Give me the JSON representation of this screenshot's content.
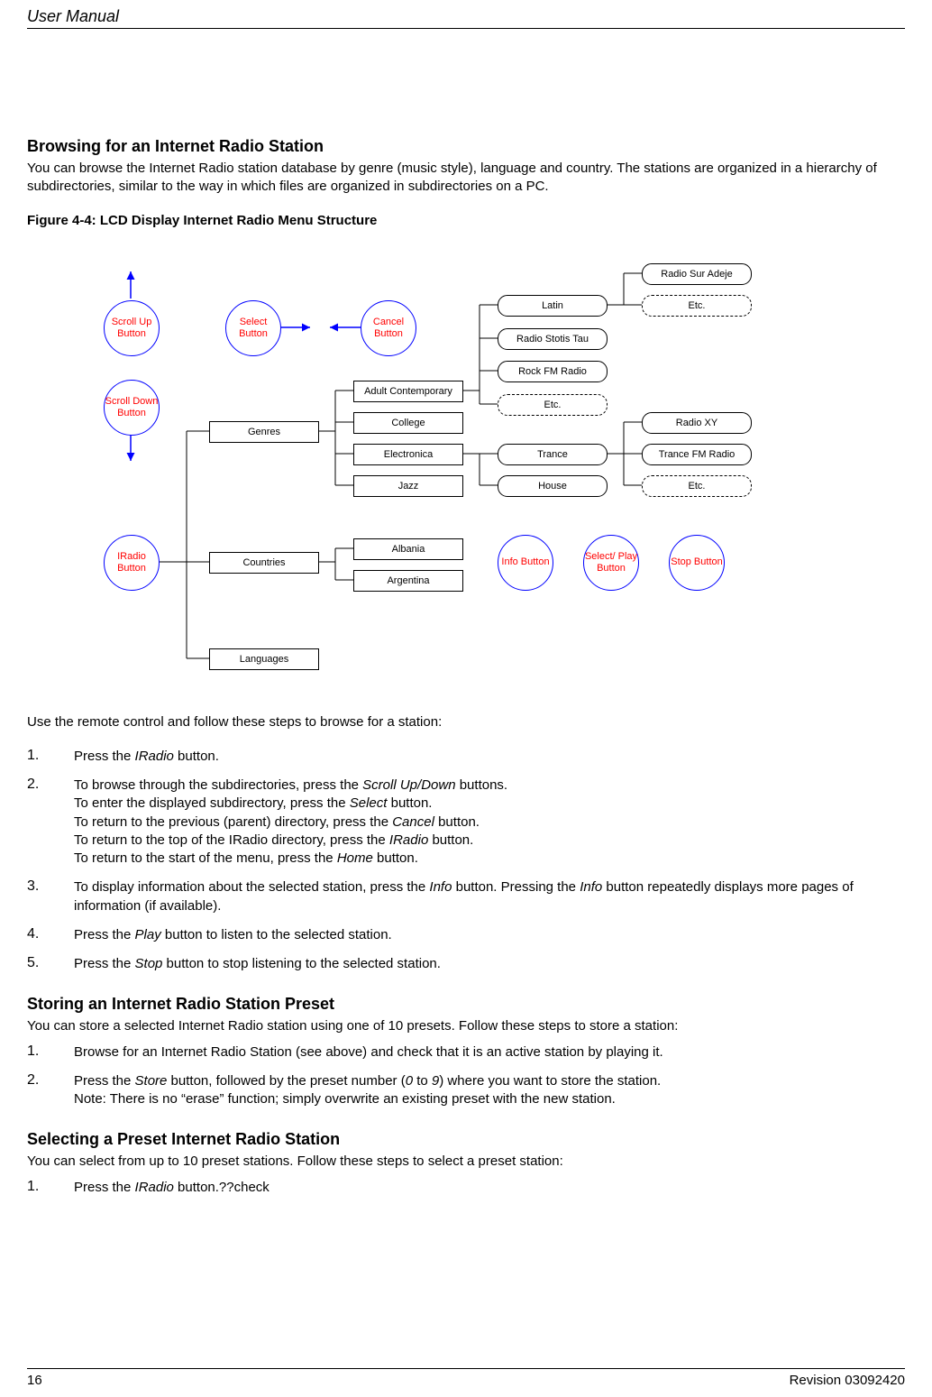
{
  "header": {
    "manual_title": "User Manual"
  },
  "section1": {
    "title": "Browsing for an Internet Radio Station",
    "intro": "You can browse the Internet Radio station database by genre (music style), language and country. The stations are organized in a hierarchy of subdirectories, similar to the way in which files are organized in subdirectories on a PC.",
    "figure_caption": "Figure 4-4: LCD Display Internet Radio Menu Structure"
  },
  "diagram": {
    "bubbles": {
      "scroll_up": "Scroll Up\nButton",
      "scroll_down": "Scroll\nDown\nButton",
      "select": "Select\nButton",
      "cancel": "Cancel\nButton",
      "iradio": "IRadio\nButton",
      "info": "Info\nButton",
      "select_play": "Select/\nPlay\nButton",
      "stop": "Stop\nButton"
    },
    "boxes": {
      "genres": "Genres",
      "countries": "Countries",
      "languages": "Languages",
      "adult_contemp": "Adult Contemporary",
      "college": "College",
      "electronica": "Electronica",
      "jazz": "Jazz",
      "albania": "Albania",
      "argentina": "Argentina",
      "latin": "Latin",
      "radio_stotis": "Radio Stotis Tau",
      "rock_fm": "Rock FM Radio",
      "etc1": "Etc.",
      "trance": "Trance",
      "house": "House",
      "radio_sur": "Radio Sur Adeje",
      "etc2": "Etc.",
      "radio_xy": "Radio XY",
      "trance_fm": "Trance FM Radio",
      "etc3": "Etc."
    }
  },
  "instructions_intro": "Use the remote control and follow these steps to browse for a station:",
  "steps_browse": [
    {
      "num": "1.",
      "lines": [
        "Press the <i>IRadio</i> button."
      ]
    },
    {
      "num": "2.",
      "lines": [
        "To browse through the subdirectories, press the <i>Scroll Up/Down</i> buttons.",
        "To enter the displayed subdirectory, press the <i>Select</i> button.",
        "To return to the previous (parent) directory, press the <i>Cancel</i> button.",
        "To return to the top of the IRadio directory, press the <i>IRadio</i> button.",
        "To return to the start of the menu, press the <i>Home</i> button."
      ]
    },
    {
      "num": "3.",
      "lines": [
        "To display information about the selected station, press the <i>Info</i> button. Pressing the <i>Info</i> button repeatedly displays more pages of information (if available)."
      ]
    },
    {
      "num": "4.",
      "lines": [
        "Press the <i>Play</i> button to listen to the selected station."
      ]
    },
    {
      "num": "5.",
      "lines": [
        "Press the <i>Stop</i> button to stop listening to the selected station."
      ]
    }
  ],
  "section2": {
    "title": "Storing an Internet Radio Station Preset",
    "intro": "You can store a selected Internet Radio station using one of 10 presets. Follow these steps to store a station:"
  },
  "steps_store": [
    {
      "num": "1.",
      "lines": [
        "Browse for an Internet Radio Station (see above) and check that it is an active station by playing it."
      ]
    },
    {
      "num": "2.",
      "lines": [
        "Press the <i>Store</i> button, followed by the preset number (<i>0</i> to <i>9</i>) where you want to store the station.",
        "Note: There is no “erase” function; simply overwrite an existing preset with the new station."
      ]
    }
  ],
  "section3": {
    "title": "Selecting a Preset Internet Radio Station",
    "intro": "You can select from up to 10 preset stations. Follow these steps to select a preset station:"
  },
  "steps_select": [
    {
      "num": "1.",
      "lines": [
        "Press the <i>IRadio</i> button.??check"
      ]
    }
  ],
  "footer": {
    "page": "16",
    "revision": "Revision 03092420"
  },
  "colors": {
    "bubble_border": "#0000ff",
    "bubble_text": "#ff0000",
    "line": "#000000",
    "arrow_blue": "#0000ff"
  }
}
